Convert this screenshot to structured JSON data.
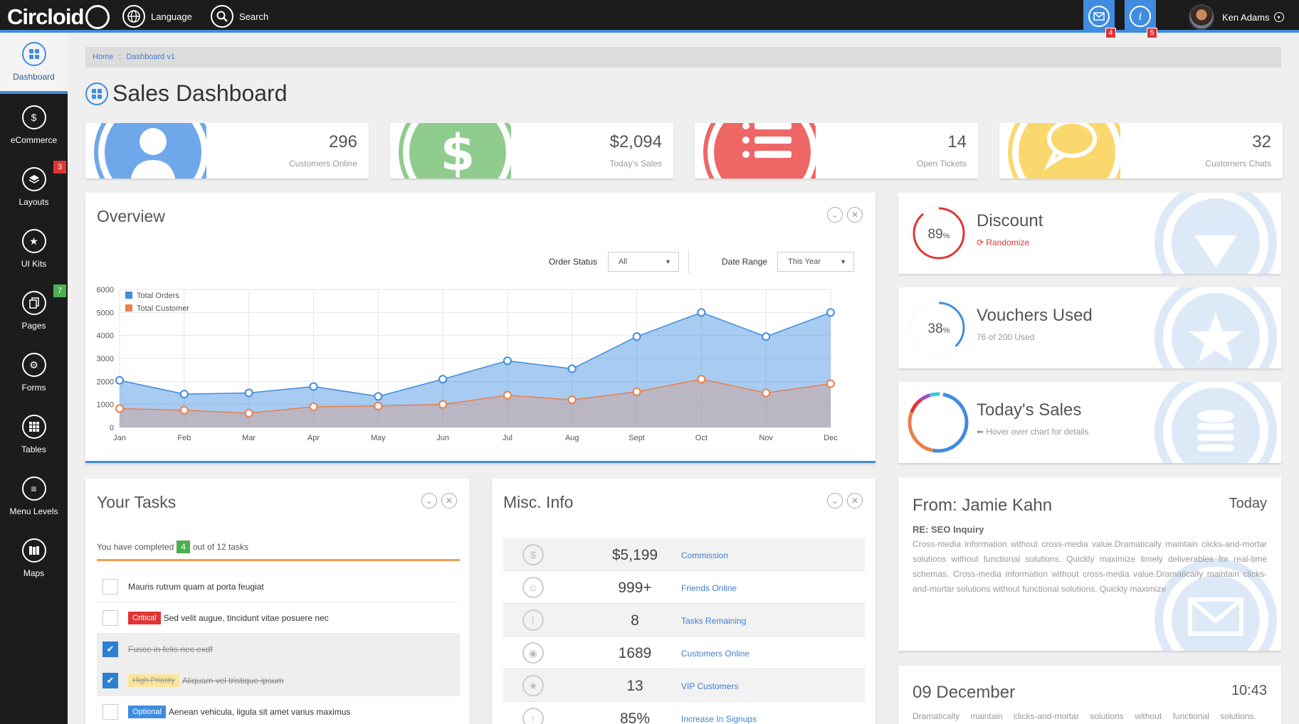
{
  "app": {
    "logo": "Circloid",
    "language_label": "Language",
    "search_label": "Search",
    "user_name": "Ken Adams"
  },
  "notifications": [
    {
      "icon": "mail-icon",
      "count": "4"
    },
    {
      "icon": "info-icon",
      "count": "5",
      "glyph": "i"
    }
  ],
  "sidebar": {
    "items": [
      {
        "label": "Dashboard",
        "icon": "grid-icon",
        "active": true
      },
      {
        "label": "eCommerce",
        "icon": "dollar-icon"
      },
      {
        "label": "Layouts",
        "icon": "layers-icon",
        "badge": "3",
        "badge_color": "#e23434"
      },
      {
        "label": "UI Kits",
        "icon": "star-icon"
      },
      {
        "label": "Pages",
        "icon": "pages-icon",
        "badge": "7",
        "badge_color": "#4caf50"
      },
      {
        "label": "Forms",
        "icon": "gear-icon"
      },
      {
        "label": "Tables",
        "icon": "table-icon"
      },
      {
        "label": "Menu Levels",
        "icon": "menu-icon"
      },
      {
        "label": "Maps",
        "icon": "map-icon"
      }
    ]
  },
  "breadcrumb": {
    "home": "Home",
    "sep": "::",
    "current": "Dashboard v1"
  },
  "page_title": "Sales Dashboard",
  "stats": [
    {
      "value": "296",
      "label": "Customers Online",
      "color": "#6ea8ea",
      "icon": "user-icon"
    },
    {
      "value": "$2,094",
      "label": "Today's Sales",
      "color": "#8fcc8e",
      "icon": "dollar-icon",
      "glyph": "$"
    },
    {
      "value": "14",
      "label": "Open Tickets",
      "color": "#ee6666",
      "icon": "list-icon"
    },
    {
      "value": "32",
      "label": "Customers Chats",
      "color": "#fbd86d",
      "icon": "chat-icon"
    }
  ],
  "overview": {
    "title": "Overview",
    "order_status_label": "Order Status",
    "order_status_value": "All",
    "date_range_label": "Date Range",
    "date_range_value": "This Year"
  },
  "chart_data": {
    "type": "area",
    "categories": [
      "Jan",
      "Feb",
      "Mar",
      "Apr",
      "May",
      "Jun",
      "Jul",
      "Aug",
      "Sept",
      "Oct",
      "Nov",
      "Dec"
    ],
    "series": [
      {
        "name": "Total Orders",
        "values": [
          2050,
          1450,
          1500,
          1780,
          1350,
          2100,
          2900,
          2550,
          3950,
          5000,
          3950,
          5000
        ],
        "color": "#3f8ce0"
      },
      {
        "name": "Total Customer",
        "values": [
          820,
          750,
          620,
          900,
          930,
          1000,
          1400,
          1200,
          1550,
          2100,
          1500,
          1900
        ],
        "color": "#e8804a"
      }
    ],
    "y_ticks": [
      "0",
      "1000",
      "2000",
      "3000",
      "4000",
      "5000",
      "6000"
    ],
    "ylim": [
      0,
      6000
    ],
    "grid": true,
    "legend": "top-left"
  },
  "info_cards": [
    {
      "title": "Discount",
      "subtitle": "Randomize",
      "gauge": "89",
      "unit": "%",
      "color": "#e23434"
    },
    {
      "title": "Vouchers Used",
      "subtitle": "76 of 200 Used",
      "gauge": "38",
      "unit": "%",
      "color": "#3f8ce0"
    },
    {
      "title": "Today's Sales",
      "subtitle": "Hover over chart for details"
    }
  ],
  "tasks": {
    "title": "Your Tasks",
    "summary_prefix": "You have completed",
    "completed": "4",
    "summary_suffix": "out of 12 tasks",
    "items": [
      {
        "text": "Mauris rutrum quam at porta feugiat",
        "done": false
      },
      {
        "tag": "Critical",
        "tag_color": "#e23434",
        "text": "Sed velit augue, tincidunt vitae posuere nec",
        "done": false
      },
      {
        "text": "Fusce in felis nec exdf",
        "done": true
      },
      {
        "tag": "High Priority",
        "tag_color": "#fbd86d",
        "text": "Aliquam vel tristique ipsum",
        "done": true
      },
      {
        "tag": "Optional",
        "tag_color": "#3f8ce0",
        "text": "Aenean vehicula, ligula sit amet varius maximus",
        "done": false
      }
    ]
  },
  "misc": {
    "title": "Misc. Info",
    "rows": [
      {
        "value": "$5,199",
        "label": "Commission",
        "icon": "dollar-icon",
        "glyph": "$"
      },
      {
        "value": "999+",
        "label": "Friends Online",
        "icon": "user-icon",
        "glyph": "☺"
      },
      {
        "value": "8",
        "label": "Tasks Remaining",
        "icon": "alert-icon",
        "glyph": "!"
      },
      {
        "value": "1689",
        "label": "Customers Online",
        "icon": "eye-icon",
        "glyph": "◉"
      },
      {
        "value": "13",
        "label": "VIP Customers",
        "icon": "star-icon",
        "glyph": "★"
      },
      {
        "value": "85%",
        "label": "Increase In Signups",
        "icon": "arrow-up-icon",
        "glyph": "↑"
      }
    ]
  },
  "message": {
    "from": "From: Jamie Kahn",
    "when": "Today",
    "subject": "RE: SEO Inquiry",
    "body": "Cross-media information without cross-media value.Dramatically maintain clicks-and-mortar solutions without functional solutions. Quickly maximize timely deliverables for real-time schemas. Cross-media information without cross-media value.Dramatically maintain clicks-and-mortar solutions without functional solutions. Quickly maximize"
  },
  "date_card": {
    "date": "09 December",
    "time": "10:43",
    "text": "Dramatically maintain clicks-and-mortar solutions without functional solutions."
  }
}
